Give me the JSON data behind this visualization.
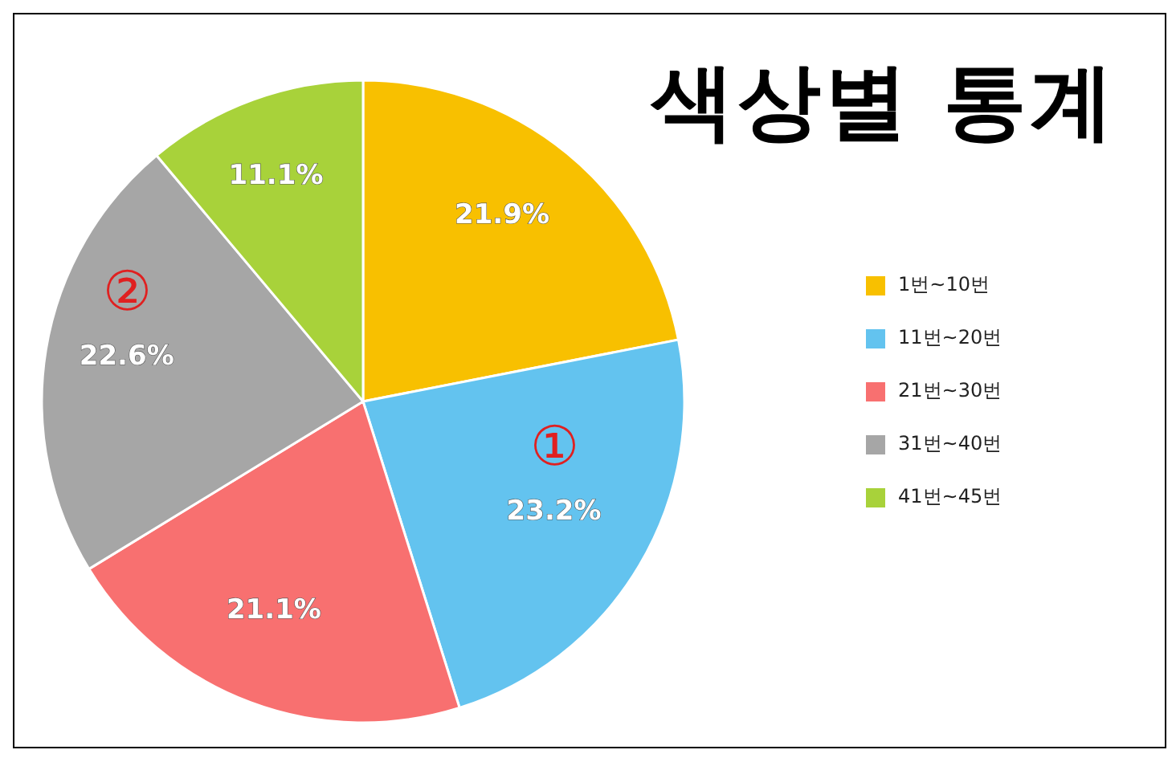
{
  "chart_data": {
    "type": "pie",
    "title": "색상별 통계",
    "categories": [
      "1번~10번",
      "11번~20번",
      "21번~30번",
      "31번~40번",
      "41번~45번"
    ],
    "values": [
      21.9,
      23.2,
      21.1,
      22.6,
      11.1
    ],
    "value_labels": [
      "21.9%",
      "23.2%",
      "21.1%",
      "22.6%",
      "11.1%"
    ],
    "colors": [
      "#f8c000",
      "#63c3ef",
      "#f87070",
      "#a6a6a6",
      "#a8d23a"
    ],
    "annotations": [
      {
        "text": "①",
        "x": "11번~20번"
      },
      {
        "text": "②",
        "x": "31번~40번"
      }
    ],
    "legend": "right"
  }
}
